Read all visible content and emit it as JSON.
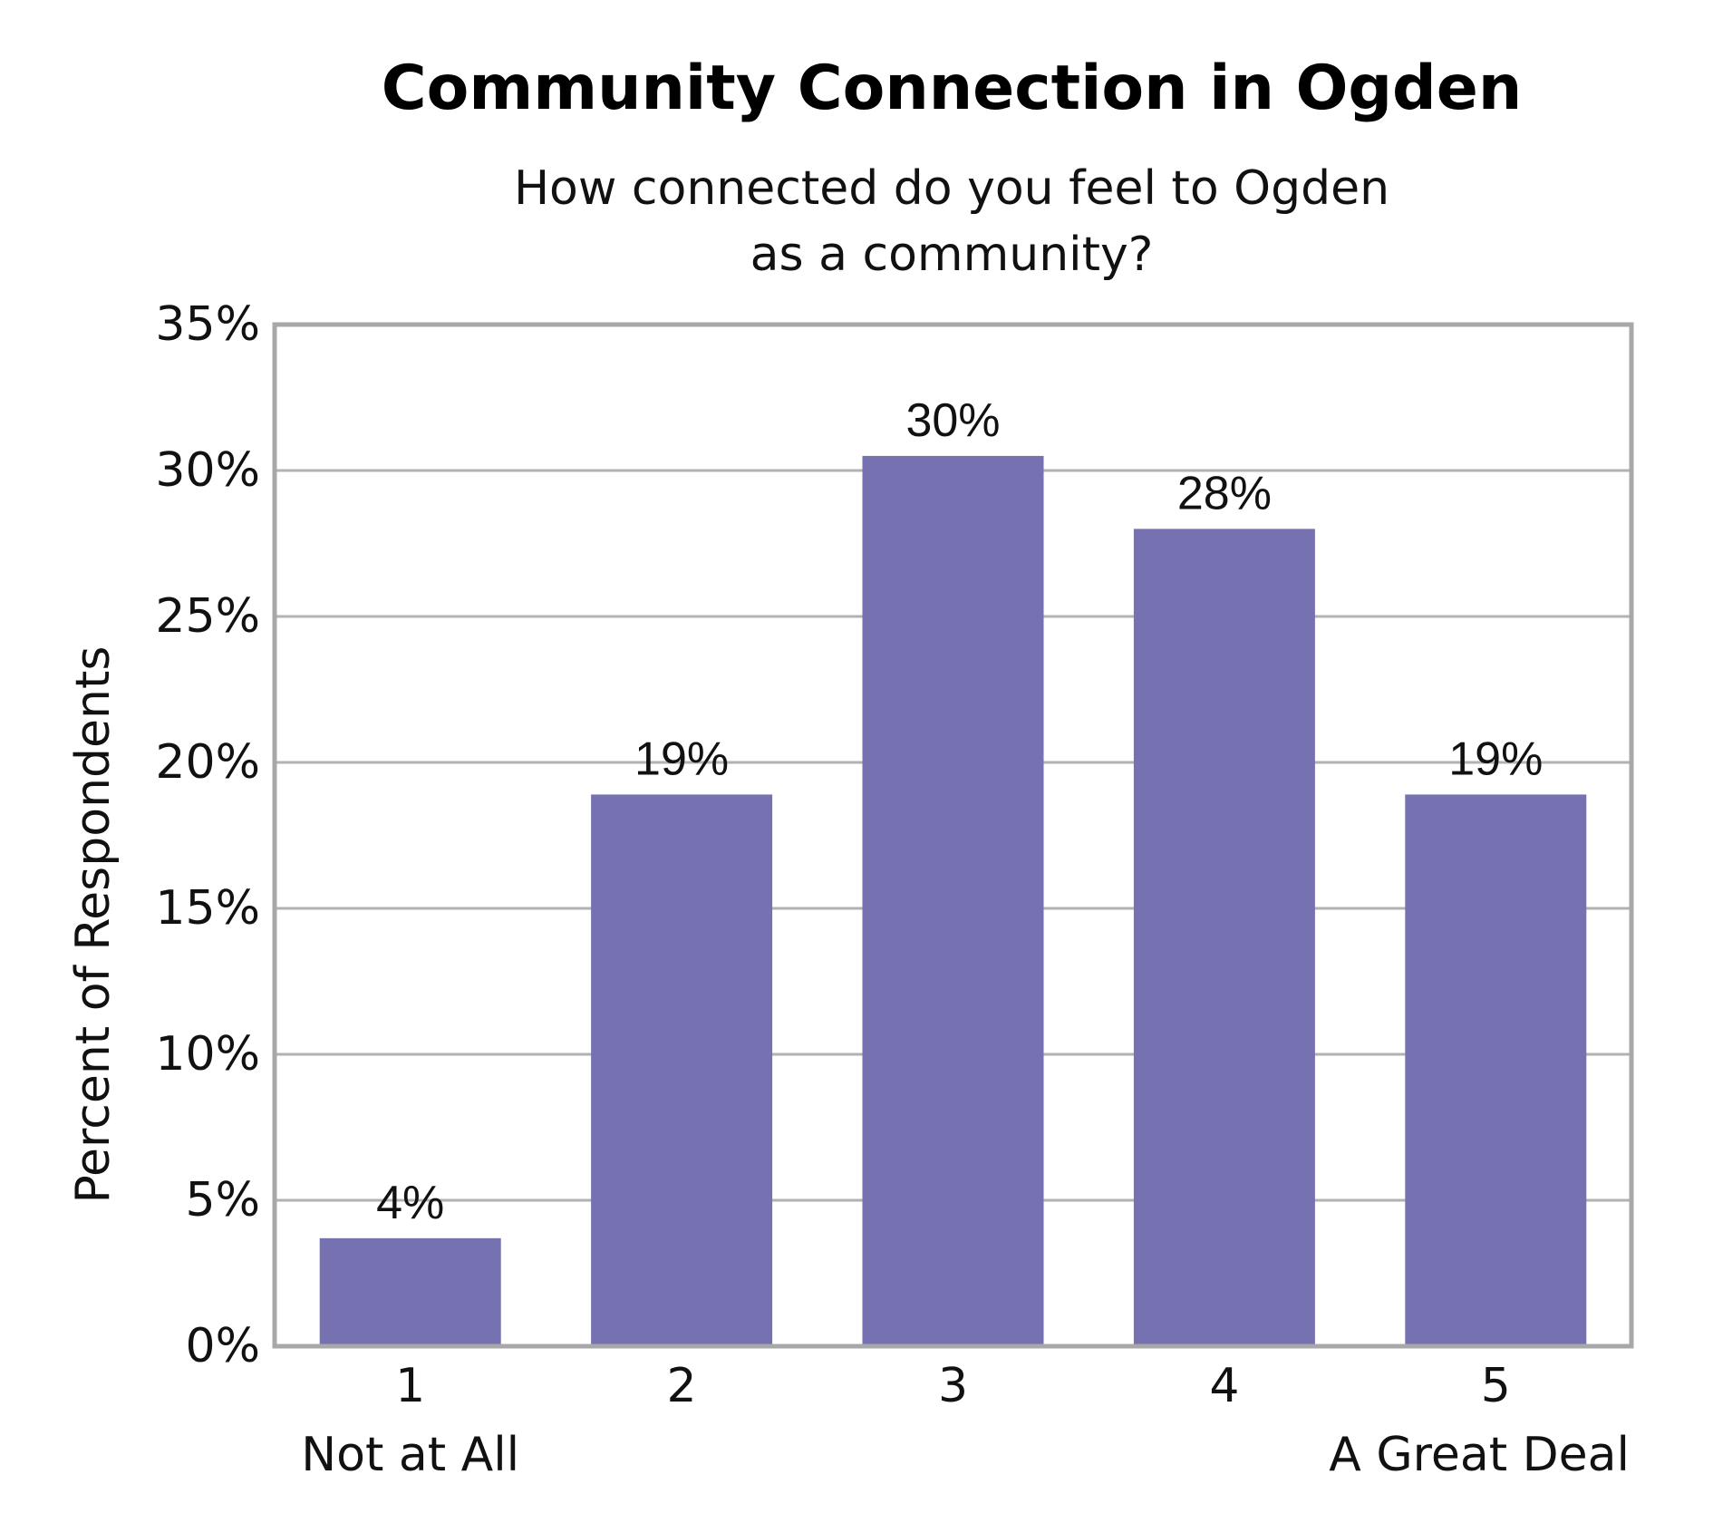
{
  "chart_data": {
    "type": "bar",
    "title": "Community Connection in Ogden",
    "subtitle_lines": [
      "How connected do you feel to Ogden",
      "as a community?"
    ],
    "ylabel": "Percent of Respondents",
    "xlabel": "",
    "categories": [
      "1",
      "2",
      "3",
      "4",
      "5"
    ],
    "category_sublabels": [
      "Not at All",
      "",
      "",
      "",
      "A Great Deal"
    ],
    "values": [
      3.7,
      18.9,
      30.5,
      28.0,
      18.9
    ],
    "data_labels": [
      "4%",
      "19%",
      "30%",
      "28%",
      "19%"
    ],
    "yticks": [
      0,
      5,
      10,
      15,
      20,
      25,
      30,
      35
    ],
    "ytick_labels": [
      "0%",
      "5%",
      "10%",
      "15%",
      "20%",
      "25%",
      "30%",
      "35%"
    ],
    "ylim": [
      0,
      35
    ],
    "grid": true,
    "legend": "none",
    "bar_color": "#7672b2",
    "grid_color": "#b2b2b2",
    "frame_color": "#a8a8a8"
  }
}
